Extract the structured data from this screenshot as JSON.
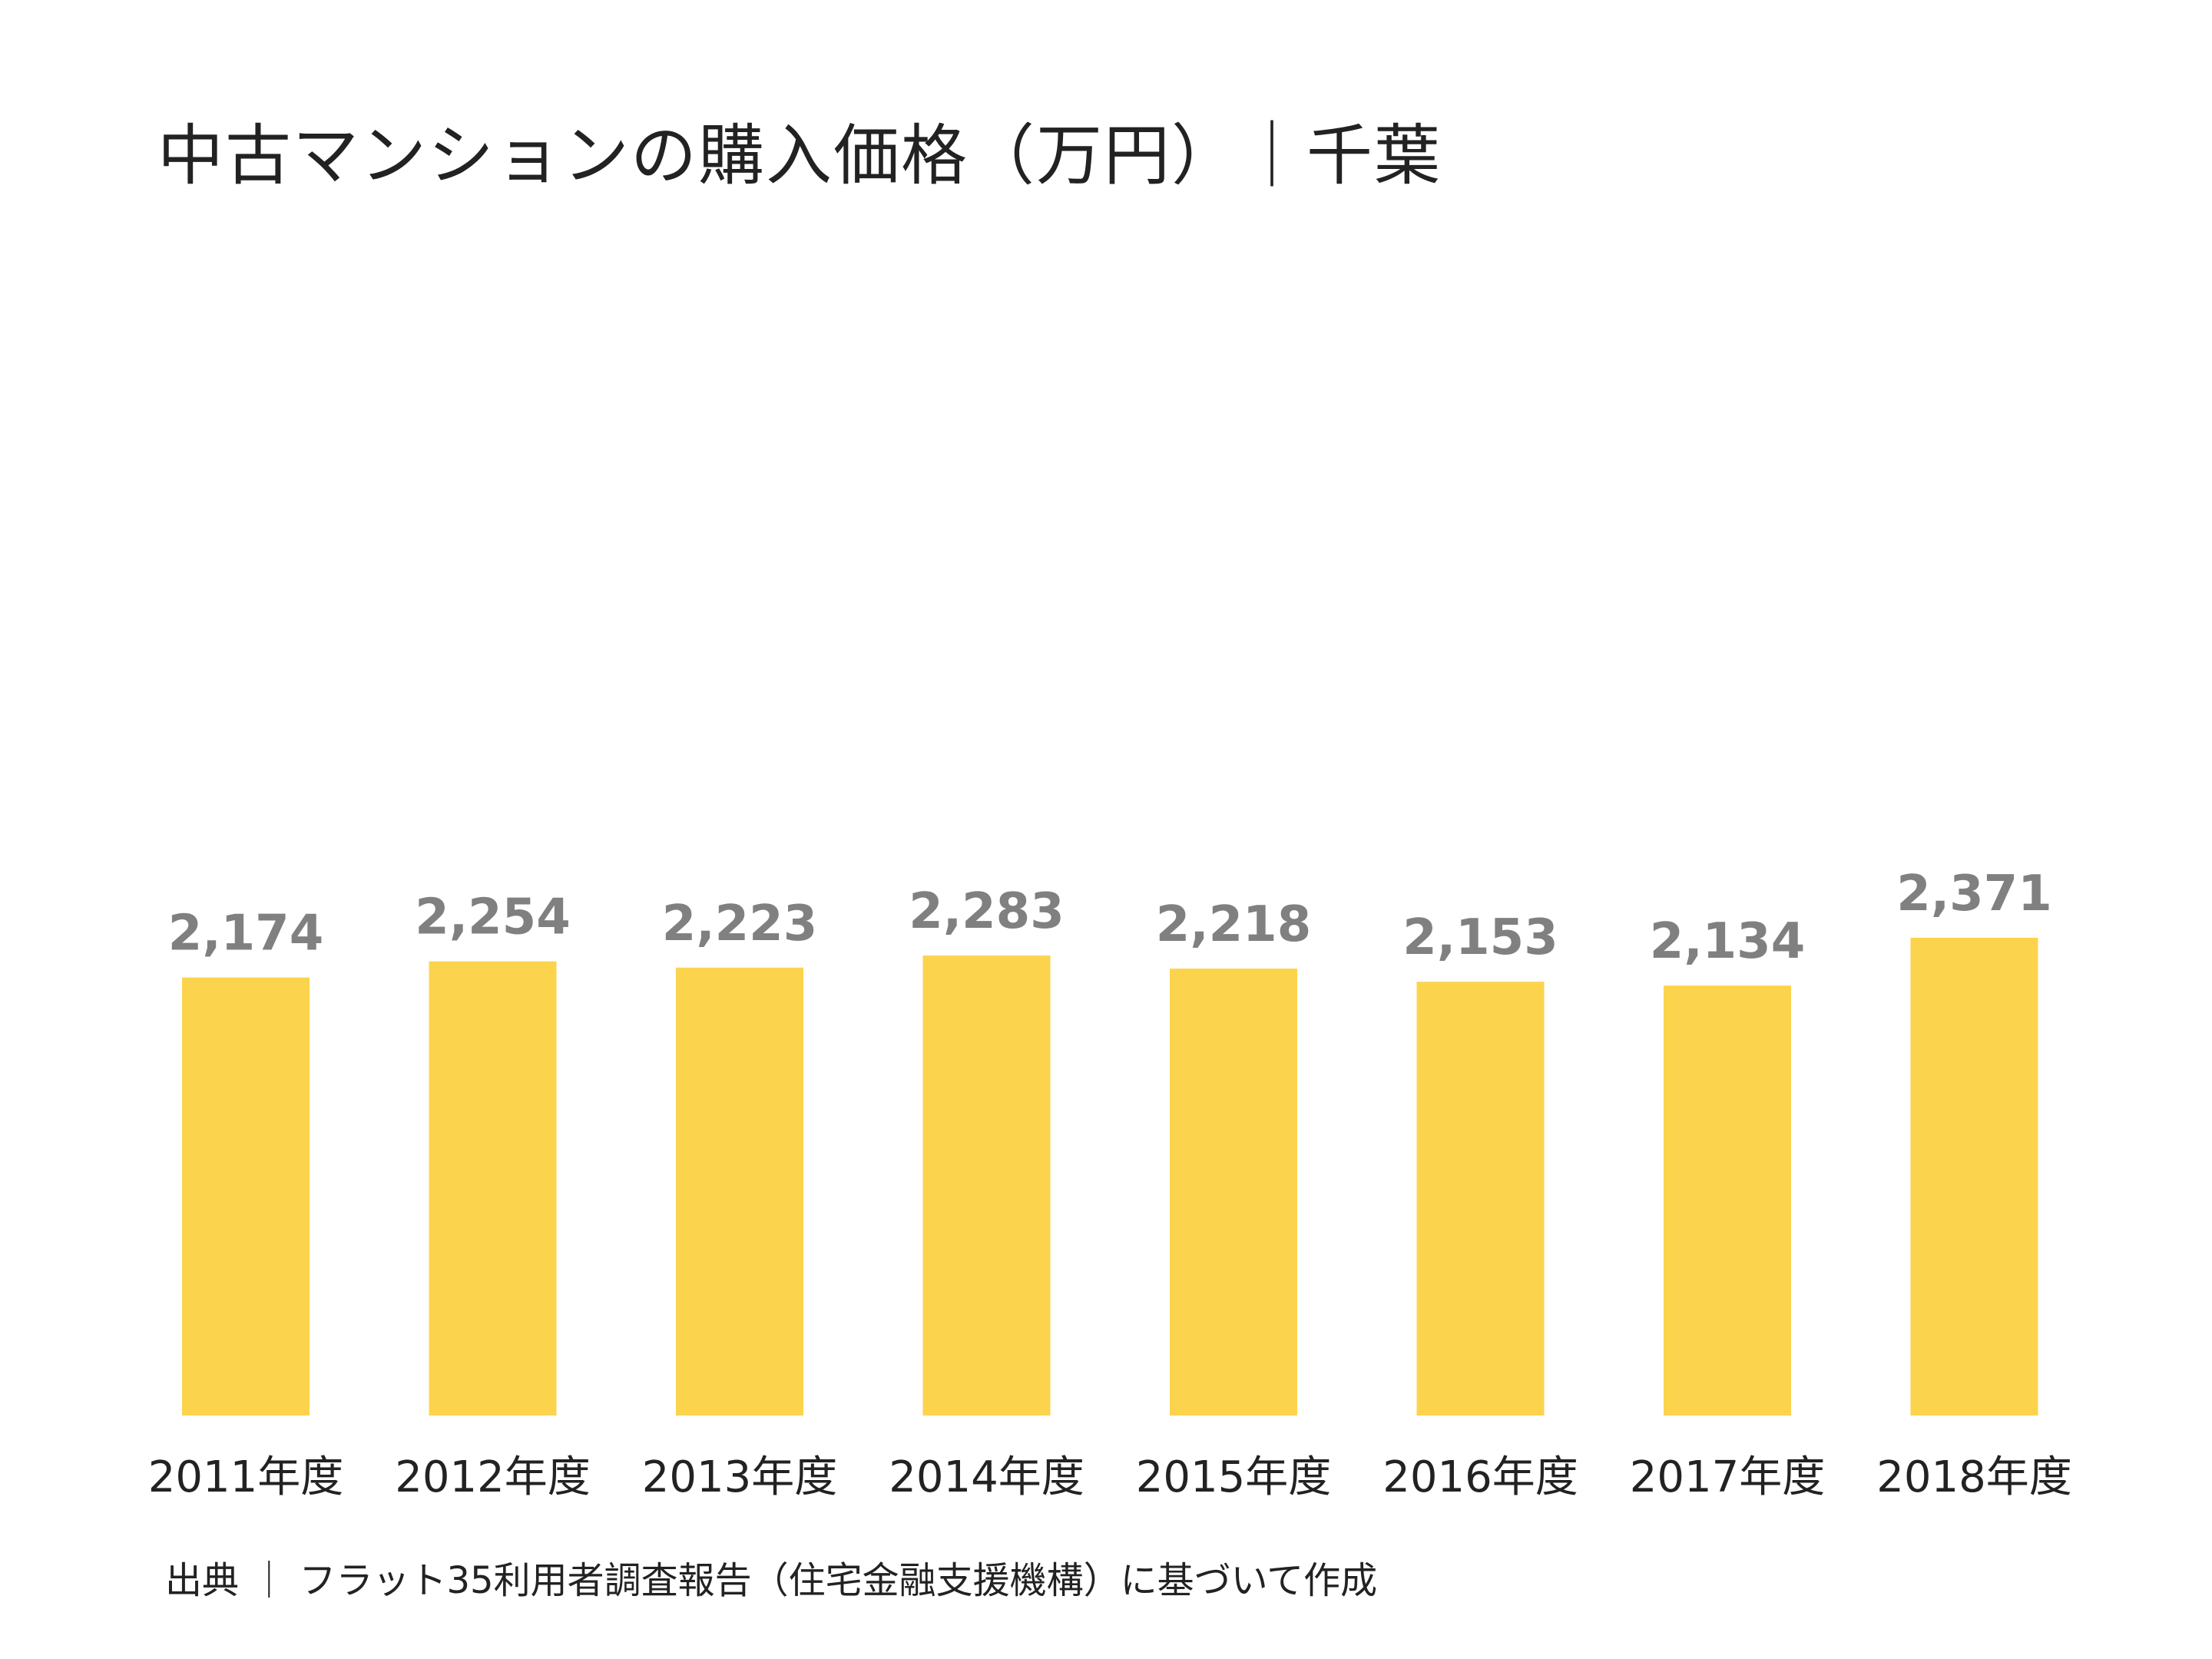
{
  "title": "中古マンションの購入価格（万円）｜千葉",
  "source": "出典 ｜ フラット35利用者調査報告（住宅金融支援機構）に基づいて作成",
  "colors": {
    "bar": "#FCD34D",
    "value_label": "#808080",
    "text": "#222222",
    "background": "#FFFFFF"
  },
  "chart_data": {
    "type": "bar",
    "categories": [
      "2011年度",
      "2012年度",
      "2013年度",
      "2014年度",
      "2015年度",
      "2016年度",
      "2017年度",
      "2018年度"
    ],
    "values": [
      2174,
      2254,
      2223,
      2283,
      2218,
      2153,
      2134,
      2371
    ],
    "value_labels": [
      "2,174",
      "2,254",
      "2,223",
      "2,283",
      "2,218",
      "2,153",
      "2,134",
      "2,371"
    ],
    "ylim": [
      0,
      2371
    ],
    "grid": false,
    "legend": "none"
  }
}
